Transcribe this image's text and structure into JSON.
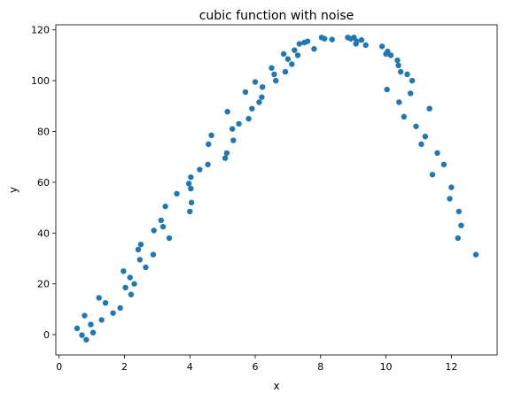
{
  "chart_data": {
    "type": "scatter",
    "title": "cubic function with noise",
    "xlabel": "x",
    "ylabel": "y",
    "xlim": [
      -0.1,
      13.4
    ],
    "ylim": [
      -8,
      122
    ],
    "xticks": [
      0,
      2,
      4,
      6,
      8,
      10,
      12
    ],
    "yticks": [
      0,
      20,
      40,
      60,
      80,
      100,
      120
    ],
    "grid": false,
    "marker_color": "#1f77b4",
    "series": [
      {
        "points": [
          [
            0.55,
            2.5
          ],
          [
            0.7,
            -0.2
          ],
          [
            0.78,
            7.5
          ],
          [
            0.83,
            -2.0
          ],
          [
            0.97,
            4.0
          ],
          [
            1.04,
            0.8
          ],
          [
            1.22,
            14.5
          ],
          [
            1.3,
            5.8
          ],
          [
            1.42,
            12.5
          ],
          [
            1.65,
            8.5
          ],
          [
            1.87,
            10.5
          ],
          [
            1.97,
            25.0
          ],
          [
            2.03,
            18.5
          ],
          [
            2.17,
            22.5
          ],
          [
            2.2,
            15.8
          ],
          [
            2.3,
            20.0
          ],
          [
            2.42,
            33.5
          ],
          [
            2.47,
            29.5
          ],
          [
            2.5,
            35.5
          ],
          [
            2.65,
            26.5
          ],
          [
            2.9,
            41.0
          ],
          [
            2.88,
            31.5
          ],
          [
            3.12,
            45.0
          ],
          [
            3.18,
            42.5
          ],
          [
            3.25,
            50.5
          ],
          [
            3.37,
            38.0
          ],
          [
            3.6,
            55.5
          ],
          [
            3.97,
            59.5
          ],
          [
            4.0,
            48.5
          ],
          [
            4.03,
            62.0
          ],
          [
            4.03,
            57.5
          ],
          [
            4.05,
            52.0
          ],
          [
            4.3,
            65.0
          ],
          [
            4.55,
            67.0
          ],
          [
            4.57,
            75.0
          ],
          [
            4.66,
            78.5
          ],
          [
            5.08,
            69.5
          ],
          [
            5.13,
            71.5
          ],
          [
            5.15,
            87.8
          ],
          [
            5.3,
            81.0
          ],
          [
            5.33,
            76.5
          ],
          [
            5.5,
            83.0
          ],
          [
            5.7,
            95.5
          ],
          [
            5.8,
            85.0
          ],
          [
            5.9,
            89.0
          ],
          [
            6.0,
            99.5
          ],
          [
            6.12,
            91.5
          ],
          [
            6.2,
            93.5
          ],
          [
            6.22,
            97.5
          ],
          [
            6.5,
            105.0
          ],
          [
            6.58,
            102.5
          ],
          [
            6.63,
            100.0
          ],
          [
            6.87,
            110.5
          ],
          [
            6.92,
            103.5
          ],
          [
            7.0,
            108.5
          ],
          [
            7.12,
            106.5
          ],
          [
            7.2,
            112.0
          ],
          [
            7.3,
            110.0
          ],
          [
            7.35,
            114.5
          ],
          [
            7.5,
            115.0
          ],
          [
            7.6,
            115.5
          ],
          [
            7.8,
            112.5
          ],
          [
            8.03,
            117.0
          ],
          [
            8.12,
            116.5
          ],
          [
            8.35,
            116.2
          ],
          [
            8.83,
            117.0
          ],
          [
            8.92,
            116.5
          ],
          [
            9.02,
            117.0
          ],
          [
            9.08,
            114.5
          ],
          [
            9.1,
            115.5
          ],
          [
            9.25,
            116.0
          ],
          [
            9.38,
            114.0
          ],
          [
            9.88,
            113.5
          ],
          [
            10.0,
            110.5
          ],
          [
            10.03,
            96.5
          ],
          [
            10.05,
            111.5
          ],
          [
            10.15,
            110.0
          ],
          [
            10.35,
            108.0
          ],
          [
            10.38,
            106.0
          ],
          [
            10.4,
            91.5
          ],
          [
            10.45,
            103.5
          ],
          [
            10.55,
            85.8
          ],
          [
            10.65,
            102.5
          ],
          [
            10.75,
            95.0
          ],
          [
            10.8,
            100.0
          ],
          [
            10.92,
            82.0
          ],
          [
            11.08,
            75.0
          ],
          [
            11.2,
            78.0
          ],
          [
            11.33,
            89.0
          ],
          [
            11.42,
            63.0
          ],
          [
            11.57,
            71.5
          ],
          [
            11.77,
            67.0
          ],
          [
            11.95,
            53.5
          ],
          [
            12.0,
            58.0
          ],
          [
            12.2,
            38.0
          ],
          [
            12.23,
            48.5
          ],
          [
            12.3,
            43.0
          ],
          [
            12.75,
            31.5
          ]
        ]
      }
    ]
  }
}
